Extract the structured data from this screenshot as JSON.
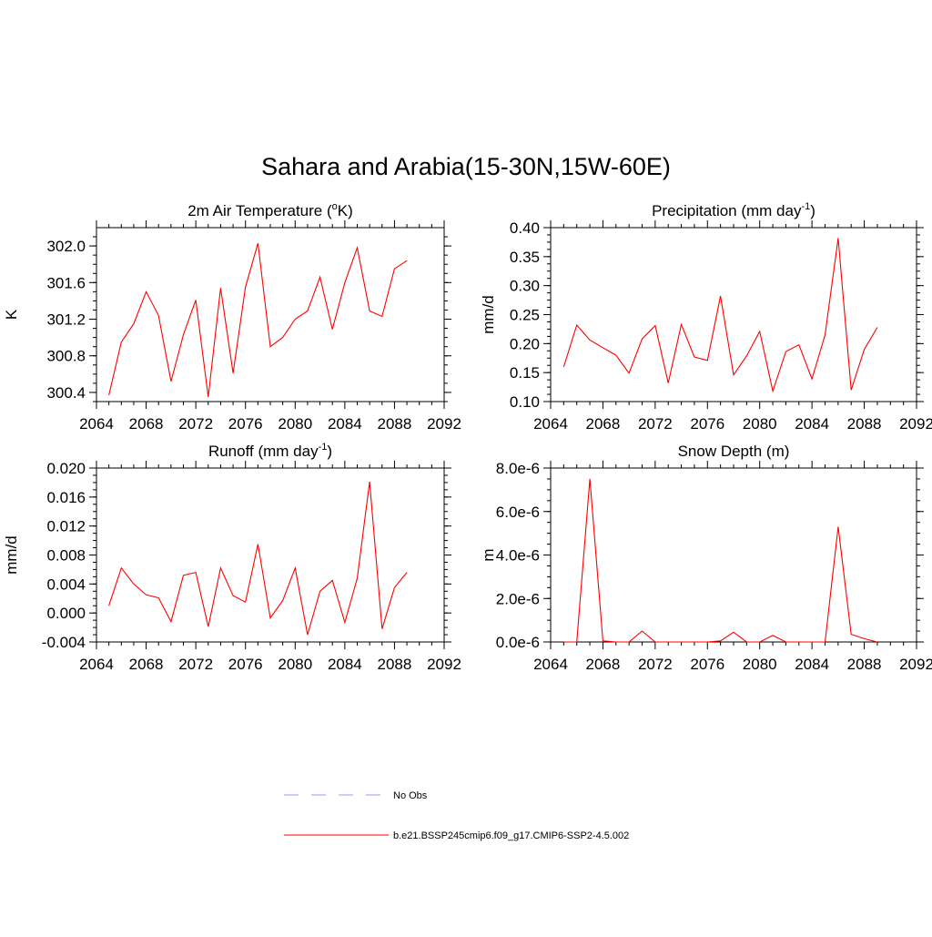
{
  "title": "Sahara and Arabia(15-30N,15W-60E)",
  "legend": {
    "entries": [
      {
        "label": "No Obs",
        "color": "#9999ff",
        "style": "dashed"
      },
      {
        "label": "b.e21.BSSP245cmip6.f09_g17.CMIP6-SSP2-4.5.002",
        "color": "#ff0000",
        "style": "solid"
      }
    ]
  },
  "chart_data": [
    {
      "type": "line",
      "title": "2m Air Temperature (",
      "title_sup": "o",
      "title_after": "K)",
      "ylabel": "K",
      "xlim": [
        2064,
        2092
      ],
      "ylim": [
        300.3,
        302.2
      ],
      "xticks": [
        "2064",
        "2068",
        "2072",
        "2076",
        "2080",
        "2084",
        "2088",
        "2092"
      ],
      "yticks": [
        {
          "v": 300.4,
          "label": "300.4"
        },
        {
          "v": 300.8,
          "label": "300.8"
        },
        {
          "v": 301.2,
          "label": "301.2"
        },
        {
          "v": 301.6,
          "label": "301.6"
        },
        {
          "v": 302.0,
          "label": "302.0"
        }
      ],
      "series": [
        {
          "color": "#ff0000",
          "x": [
            2065,
            2066,
            2067,
            2068,
            2069,
            2070,
            2071,
            2072,
            2073,
            2074,
            2075,
            2076,
            2077,
            2078,
            2079,
            2080,
            2081,
            2082,
            2083,
            2084,
            2085,
            2086,
            2087,
            2088,
            2089
          ],
          "values": [
            300.37,
            300.95,
            301.15,
            301.5,
            301.24,
            300.52,
            301.03,
            301.41,
            300.35,
            301.54,
            300.61,
            301.55,
            302.03,
            300.9,
            301.0,
            301.2,
            301.29,
            301.66,
            301.09,
            301.6,
            301.98,
            301.29,
            301.23,
            301.75,
            301.84
          ]
        }
      ]
    },
    {
      "type": "line",
      "title": "Precipitation (mm day",
      "title_sup": "-1",
      "title_after": ")",
      "ylabel": "mm/d",
      "xlim": [
        2064,
        2092
      ],
      "ylim": [
        0.1,
        0.4
      ],
      "xticks": [
        "2064",
        "2068",
        "2072",
        "2076",
        "2080",
        "2084",
        "2088",
        "2092"
      ],
      "yticks": [
        {
          "v": 0.1,
          "label": "0.10"
        },
        {
          "v": 0.15,
          "label": "0.15"
        },
        {
          "v": 0.2,
          "label": "0.20"
        },
        {
          "v": 0.25,
          "label": "0.25"
        },
        {
          "v": 0.3,
          "label": "0.30"
        },
        {
          "v": 0.35,
          "label": "0.35"
        },
        {
          "v": 0.4,
          "label": "0.40"
        }
      ],
      "series": [
        {
          "color": "#ff0000",
          "x": [
            2065,
            2066,
            2067,
            2068,
            2069,
            2070,
            2071,
            2072,
            2073,
            2074,
            2075,
            2076,
            2077,
            2078,
            2079,
            2080,
            2081,
            2082,
            2083,
            2084,
            2085,
            2086,
            2087,
            2088,
            2089
          ],
          "values": [
            0.16,
            0.232,
            0.206,
            0.193,
            0.18,
            0.149,
            0.208,
            0.231,
            0.132,
            0.233,
            0.177,
            0.171,
            0.282,
            0.146,
            0.179,
            0.221,
            0.118,
            0.186,
            0.198,
            0.139,
            0.215,
            0.382,
            0.12,
            0.19,
            0.228
          ]
        }
      ]
    },
    {
      "type": "line",
      "title": "Runoff (mm day",
      "title_sup": "-1",
      "title_after": ")",
      "ylabel": "mm/d",
      "xlim": [
        2064,
        2092
      ],
      "ylim": [
        -0.004,
        0.02
      ],
      "xticks": [
        "2064",
        "2068",
        "2072",
        "2076",
        "2080",
        "2084",
        "2088",
        "2092"
      ],
      "yticks": [
        {
          "v": -0.004,
          "label": "-0.004"
        },
        {
          "v": 0.0,
          "label": "0.000"
        },
        {
          "v": 0.004,
          "label": "0.004"
        },
        {
          "v": 0.008,
          "label": "0.008"
        },
        {
          "v": 0.012,
          "label": "0.012"
        },
        {
          "v": 0.016,
          "label": "0.016"
        },
        {
          "v": 0.02,
          "label": "0.020"
        }
      ],
      "series": [
        {
          "color": "#ff0000",
          "x": [
            2065,
            2066,
            2067,
            2068,
            2069,
            2070,
            2071,
            2072,
            2073,
            2074,
            2075,
            2076,
            2077,
            2078,
            2079,
            2080,
            2081,
            2082,
            2083,
            2084,
            2085,
            2086,
            2087,
            2088,
            2089
          ],
          "values": [
            0.001,
            0.0062,
            0.004,
            0.0025,
            0.0021,
            -0.0012,
            0.0052,
            0.0056,
            -0.0019,
            0.0062,
            0.0024,
            0.0015,
            0.0095,
            -0.0007,
            0.0017,
            0.0062,
            -0.003,
            0.003,
            0.0045,
            -0.0013,
            0.0048,
            0.0181,
            -0.0022,
            0.0035,
            0.0056
          ]
        }
      ]
    },
    {
      "type": "line",
      "title": "Snow Depth (m)",
      "title_sup": "",
      "title_after": "",
      "ylabel": "m",
      "xlim": [
        2064,
        2092
      ],
      "ylim": [
        0,
        8e-06
      ],
      "xticks": [
        "2064",
        "2068",
        "2072",
        "2076",
        "2080",
        "2084",
        "2088",
        "2092"
      ],
      "yticks": [
        {
          "v": 0,
          "label": "0.0e-6"
        },
        {
          "v": 2e-06,
          "label": "2.0e-6"
        },
        {
          "v": 4e-06,
          "label": "4.0e-6"
        },
        {
          "v": 6e-06,
          "label": "6.0e-6"
        },
        {
          "v": 8e-06,
          "label": "8.0e-6"
        }
      ],
      "series": [
        {
          "color": "#ff0000",
          "x": [
            2065,
            2066,
            2067,
            2068,
            2069,
            2070,
            2071,
            2072,
            2073,
            2074,
            2075,
            2076,
            2077,
            2078,
            2079,
            2080,
            2081,
            2082,
            2083,
            2084,
            2085,
            2086,
            2087,
            2088,
            2089
          ],
          "values": [
            0,
            0,
            7.5e-06,
            5e-08,
            0,
            0,
            5e-07,
            0,
            0,
            0,
            0,
            0,
            5e-08,
            4.5e-07,
            0,
            0,
            3e-07,
            0,
            0,
            0,
            0,
            5.3e-06,
            3.5e-07,
            1.5e-07,
            0
          ]
        }
      ]
    }
  ]
}
